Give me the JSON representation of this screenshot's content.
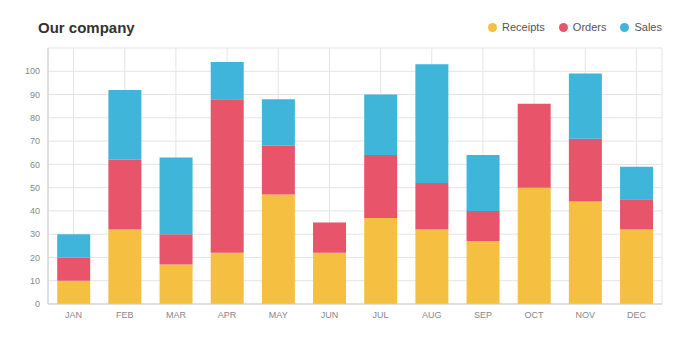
{
  "chart_data": {
    "type": "bar",
    "title": "Our company",
    "categories": [
      "JAN",
      "FEB",
      "MAR",
      "APR",
      "MAY",
      "JUN",
      "JUL",
      "AUG",
      "SEP",
      "OCT",
      "NOV",
      "DEC"
    ],
    "series": [
      {
        "name": "Receipts",
        "color": "#f5bf42",
        "values": [
          10,
          32,
          17,
          22,
          47,
          22,
          37,
          32,
          27,
          50,
          44,
          32
        ]
      },
      {
        "name": "Orders",
        "color": "#e8546a",
        "values": [
          10,
          30,
          13,
          66,
          21,
          13,
          27,
          20,
          13,
          36,
          27,
          13
        ]
      },
      {
        "name": "Sales",
        "color": "#3fb5d9",
        "values": [
          10,
          30,
          33,
          16,
          20,
          0,
          26,
          51,
          24,
          0,
          28,
          14
        ]
      }
    ],
    "ylim": [
      0,
      110
    ],
    "yticks": [
      0,
      10,
      20,
      30,
      40,
      50,
      60,
      70,
      80,
      90,
      100
    ],
    "grid": true,
    "stacked": true,
    "legend": "top right"
  }
}
